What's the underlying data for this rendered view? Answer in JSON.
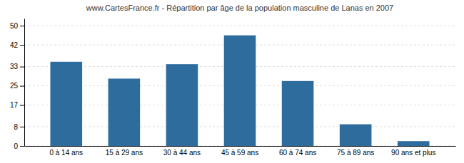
{
  "chart_data": {
    "type": "bar",
    "title": "www.CartesFrance.fr - Répartition par âge de la population masculine de Lanas en 2007",
    "categories": [
      "0 à 14 ans",
      "15 à 29 ans",
      "30 à 44 ans",
      "45 à 59 ans",
      "60 à 74 ans",
      "75 à 89 ans",
      "90 ans et plus"
    ],
    "values": [
      35,
      28,
      34,
      46,
      27,
      9,
      2
    ],
    "color": "#2e6c9e",
    "ylim": [
      0,
      53
    ],
    "yticks": [
      0,
      8,
      17,
      25,
      33,
      42,
      50
    ],
    "grid": true
  }
}
